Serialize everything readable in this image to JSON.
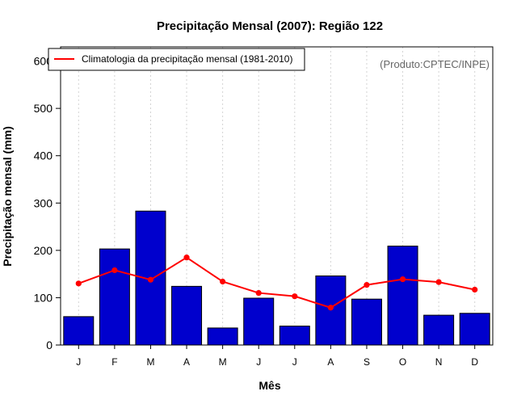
{
  "chart_data": {
    "type": "bar",
    "title": "Precipitação Mensal (2007): Região 122",
    "xlabel": "Mês",
    "ylabel": "Precipitação mensal (mm)",
    "ylim": [
      0,
      630
    ],
    "yticks": [
      0,
      100,
      200,
      300,
      400,
      500,
      600
    ],
    "categories": [
      "J",
      "F",
      "M",
      "A",
      "M",
      "J",
      "J",
      "A",
      "S",
      "O",
      "N",
      "D"
    ],
    "series": [
      {
        "name": "Precipitação mensal (2007)",
        "type": "bar",
        "values": [
          60,
          203,
          283,
          124,
          36,
          99,
          40,
          146,
          97,
          209,
          63,
          67
        ]
      },
      {
        "name": "Climatologia da precipitação mensal (1981-2010)",
        "type": "line",
        "values": [
          130,
          158,
          138,
          185,
          134,
          110,
          103,
          79,
          127,
          139,
          133,
          117
        ]
      }
    ],
    "legend": {
      "position": "top-left",
      "label": "Climatologia da precipitação mensal (1981-2010)"
    },
    "annotation": "(Produto:CPTEC/INPE)",
    "grid": "vertical dotted",
    "colors": {
      "bar_fill": "#0000CD",
      "bar_stroke": "#000000",
      "line": "#FF0000",
      "grid": "#D3D3D3",
      "annotation": "#666666"
    }
  }
}
